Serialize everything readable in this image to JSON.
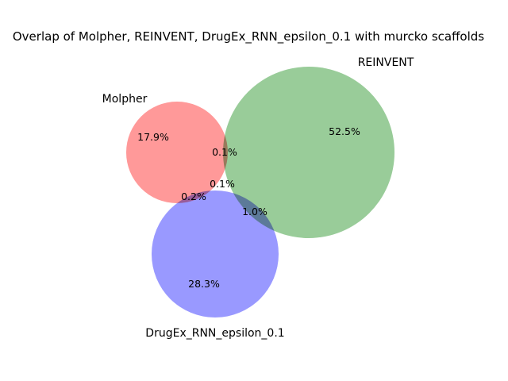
{
  "title": "Overlap of Molpher, REINVENT, DrugEx_RNN_epsilon_0.1 with murcko scaffolds",
  "sets": [
    {
      "key": "molpher",
      "label": "Molpher",
      "color": "#ff9999"
    },
    {
      "key": "reinvent",
      "label": "REINVENT",
      "color": "#99cc99"
    },
    {
      "key": "drugex",
      "label": "DrugEx_RNN_epsilon_0.1",
      "color": "#9999ff"
    }
  ],
  "regions": {
    "molpher_only": "17.9%",
    "reinvent_only": "52.5%",
    "drugex_only": "28.3%",
    "molpher_reinvent": "0.1%",
    "molpher_reinvent_drugex": "0.1%",
    "molpher_drugex": "0.2%",
    "reinvent_drugex": "1.0%"
  }
}
